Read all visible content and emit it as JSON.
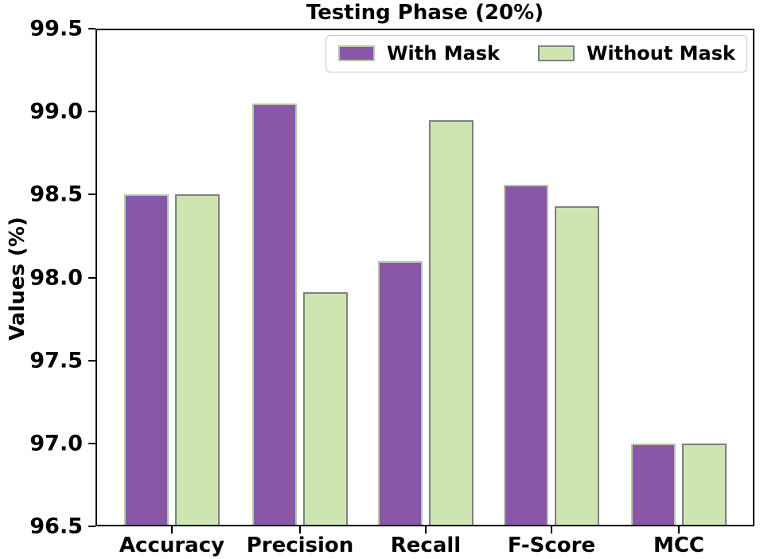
{
  "chart_data": {
    "type": "bar",
    "title": "Testing Phase (20%)",
    "xlabel": "",
    "ylabel": "Values (%)",
    "categories": [
      "Accuracy",
      "Precision",
      "Recall",
      "F-Score",
      "MCC"
    ],
    "series": [
      {
        "name": "With Mask",
        "color": "#8a57a8",
        "edge_color": "#b7c9a6",
        "values": [
          98.5,
          99.05,
          98.1,
          98.56,
          97.0
        ]
      },
      {
        "name": "Without Mask",
        "color": "#cee5b2",
        "edge_color": "#7f7f7f",
        "values": [
          98.5,
          97.91,
          98.95,
          98.43,
          97.0
        ]
      }
    ],
    "ylim": [
      96.5,
      99.5
    ],
    "yticks": [
      96.5,
      97.0,
      97.5,
      98.0,
      98.5,
      99.0,
      99.5
    ],
    "ytick_format_decimals": 1,
    "grid": false,
    "legend_position": "upper right",
    "axis_color": "#000000",
    "background_color": "#ffffff"
  }
}
